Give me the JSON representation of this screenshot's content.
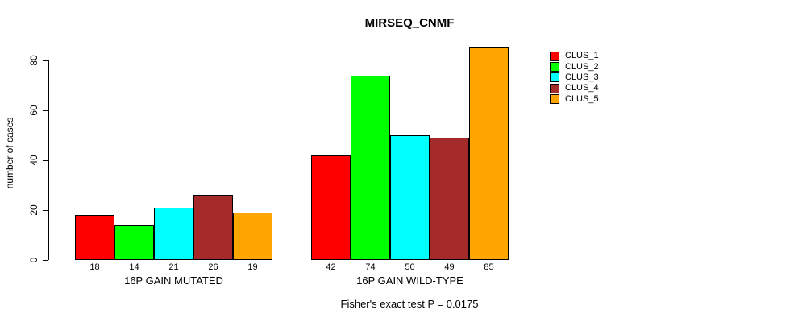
{
  "chart_data": {
    "type": "bar",
    "title": "MIRSEQ_CNMF",
    "xlabel": "",
    "ylabel": "number of cases",
    "categories": [
      "16P GAIN MUTATED",
      "16P GAIN WILD-TYPE"
    ],
    "series": [
      {
        "name": "CLUS_1",
        "color": "#FF0000",
        "values": [
          18,
          42
        ]
      },
      {
        "name": "CLUS_2",
        "color": "#00FF00",
        "values": [
          14,
          74
        ]
      },
      {
        "name": "CLUS_3",
        "color": "#00FFFF",
        "values": [
          21,
          50
        ]
      },
      {
        "name": "CLUS_4",
        "color": "#A52A2A",
        "values": [
          26,
          49
        ]
      },
      {
        "name": "CLUS_5",
        "color": "#FFA500",
        "values": [
          19,
          85
        ]
      }
    ],
    "yticks": [
      0,
      20,
      40,
      60,
      80
    ],
    "ylim": [
      0,
      85
    ],
    "grid": false,
    "legend_position": "right-outside",
    "bar_value_labels": true,
    "annotation": "Fisher's exact test P = 0.0175"
  }
}
